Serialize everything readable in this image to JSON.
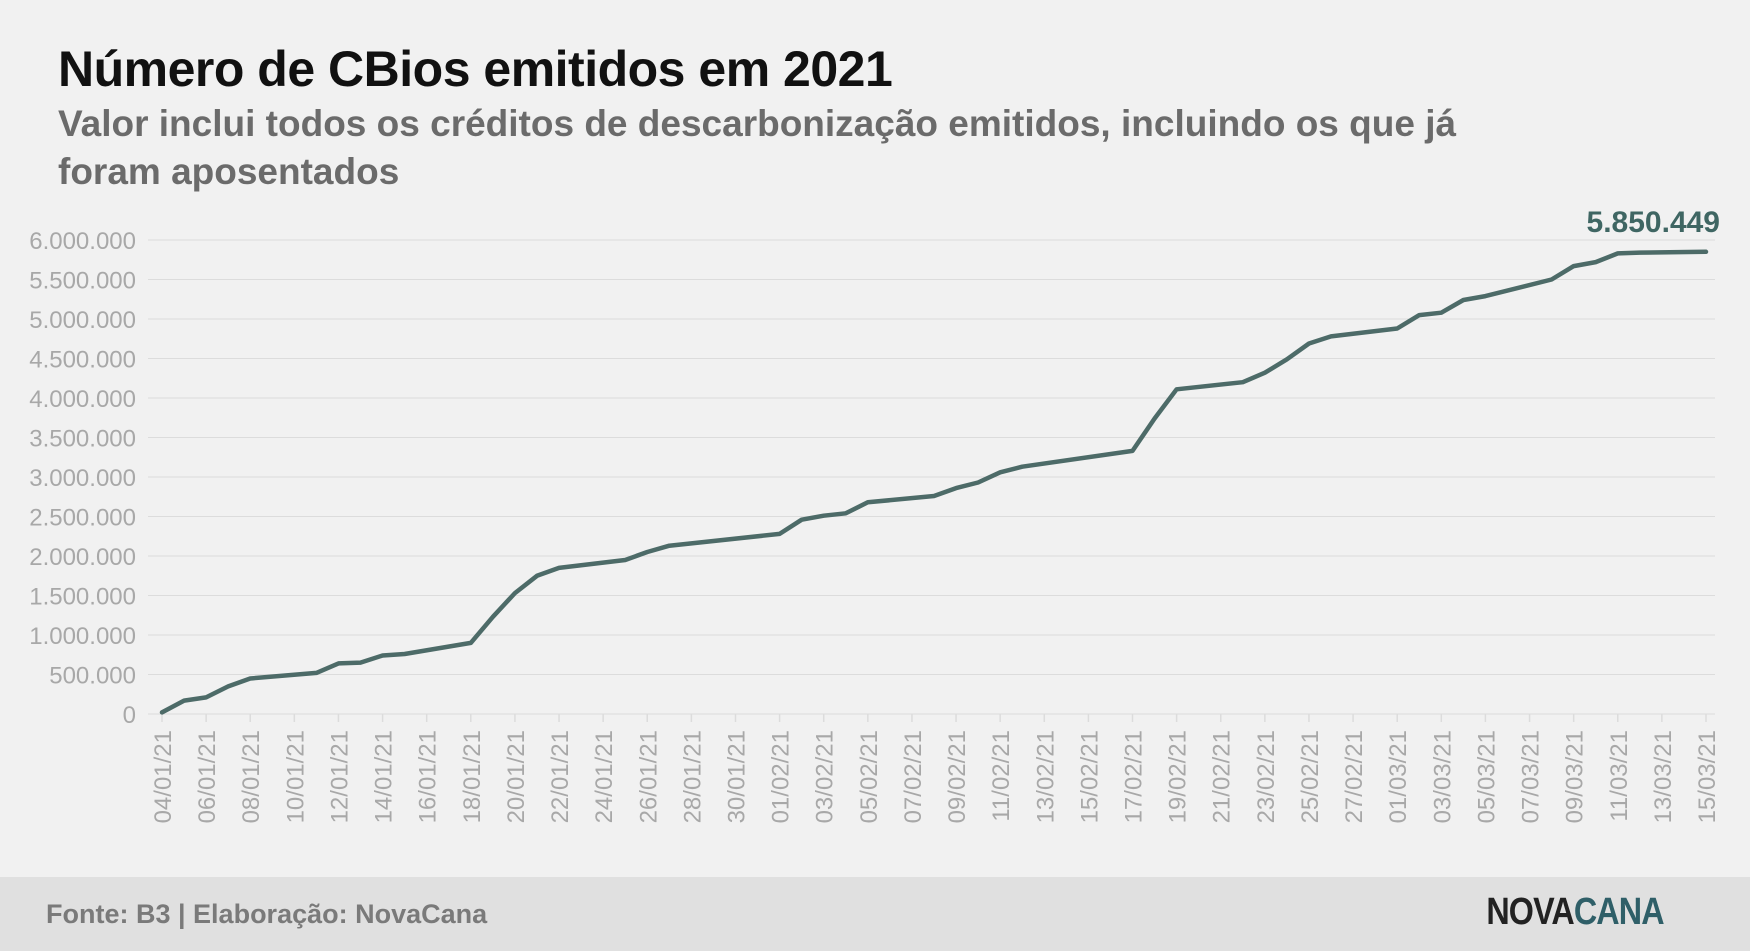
{
  "title": "Número de CBios emitidos em 2021",
  "subtitle": "Valor inclui todos os créditos de descarbonização emitidos, incluindo os que já foram aposentados",
  "footer": {
    "source": "Fonte: B3 | Elaboração: NovaCana",
    "logo_part1": "NOVA",
    "logo_part2": "CANA"
  },
  "colors": {
    "line": "#4d6b68",
    "annotation": "#3f6663",
    "grid": "#dcdcdc",
    "axis_text": "#a8a8a8",
    "logo_dark": "#222222",
    "logo_accent": "#2f5f68"
  },
  "chart_data": {
    "type": "line",
    "title": "Número de CBios emitidos em 2021",
    "xlabel": "",
    "ylabel": "",
    "ylim": [
      0,
      6000000
    ],
    "yticks": [
      0,
      500000,
      1000000,
      1500000,
      2000000,
      2500000,
      3000000,
      3500000,
      4000000,
      4500000,
      5000000,
      5500000,
      6000000
    ],
    "ytick_labels": [
      "0",
      "500.000",
      "1.000.000",
      "1.500.000",
      "2.000.000",
      "2.500.000",
      "3.000.000",
      "3.500.000",
      "4.000.000",
      "4.500.000",
      "5.000.000",
      "5.500.000",
      "6.000.000"
    ],
    "xtick_labels": [
      "04/01/21",
      "06/01/21",
      "08/01/21",
      "10/01/21",
      "12/01/21",
      "14/01/21",
      "16/01/21",
      "18/01/21",
      "20/01/21",
      "22/01/21",
      "24/01/21",
      "26/01/21",
      "28/01/21",
      "30/01/21",
      "01/02/21",
      "03/02/21",
      "05/02/21",
      "07/02/21",
      "09/02/21",
      "11/02/21",
      "13/02/21",
      "15/02/21",
      "17/02/21",
      "19/02/21",
      "21/02/21",
      "23/02/21",
      "25/02/21",
      "27/02/21",
      "01/03/21",
      "03/03/21",
      "05/03/21",
      "07/03/21",
      "09/03/21",
      "11/03/21",
      "13/03/21",
      "15/03/21"
    ],
    "grid": true,
    "legend": "none",
    "series": [
      {
        "x": [
          "04/01/21",
          "05/01/21",
          "06/01/21",
          "07/01/21",
          "08/01/21",
          "11/01/21",
          "12/01/21",
          "13/01/21",
          "14/01/21",
          "15/01/21",
          "18/01/21",
          "19/01/21",
          "20/01/21",
          "21/01/21",
          "22/01/21",
          "25/01/21",
          "26/01/21",
          "27/01/21",
          "28/01/21",
          "01/02/21",
          "02/02/21",
          "03/02/21",
          "04/02/21",
          "05/02/21",
          "08/02/21",
          "09/02/21",
          "10/02/21",
          "11/02/21",
          "12/02/21",
          "17/02/21",
          "18/02/21",
          "19/02/21",
          "22/02/21",
          "23/02/21",
          "24/02/21",
          "25/02/21",
          "26/02/21",
          "01/03/21",
          "02/03/21",
          "03/03/21",
          "04/03/21",
          "05/03/21",
          "08/03/21",
          "09/03/21",
          "10/03/21",
          "11/03/21",
          "12/03/21",
          "15/03/21"
        ],
        "values": [
          20000,
          170000,
          210000,
          350000,
          450000,
          520000,
          640000,
          650000,
          740000,
          760000,
          900000,
          1230000,
          1530000,
          1750000,
          1850000,
          1950000,
          2050000,
          2130000,
          2160000,
          2280000,
          2460000,
          2510000,
          2540000,
          2680000,
          2760000,
          2860000,
          2930000,
          3060000,
          3130000,
          3330000,
          3740000,
          4110000,
          4200000,
          4320000,
          4490000,
          4690000,
          4780000,
          4880000,
          5050000,
          5080000,
          5240000,
          5290000,
          5500000,
          5670000,
          5720000,
          5830000,
          5840000,
          5850449
        ],
        "end_label": "5.850.449"
      }
    ]
  }
}
